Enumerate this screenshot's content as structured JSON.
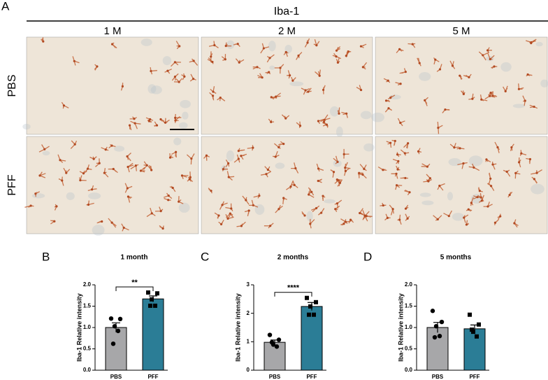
{
  "figure": {
    "panel": "A",
    "stain": "Iba-1",
    "columns": [
      "1 M",
      "2 M",
      "5 M"
    ],
    "rows": [
      "PBS",
      "PFF"
    ]
  },
  "chart_data": [
    {
      "type": "bar",
      "panel": "B",
      "title": "1 month",
      "y_label": "Iba-1 Relative intensity",
      "categories": [
        "PBS",
        "PFF"
      ],
      "values": [
        1.0,
        1.67
      ],
      "errors": [
        0.11,
        0.07
      ],
      "points": [
        [
          1.21,
          1.2,
          1.03,
          0.92,
          0.62
        ],
        [
          1.82,
          1.8,
          1.66,
          1.51,
          1.51
        ]
      ],
      "markers": [
        "circle",
        "square"
      ],
      "colors": [
        "#a7a7a9",
        "#2b7d96"
      ],
      "ylim": [
        0,
        2
      ],
      "yticks": [
        {
          "value": 0,
          "label": "0.0"
        },
        {
          "value": 0.5,
          "label": "0.5"
        },
        {
          "value": 1,
          "label": "1.0"
        },
        {
          "value": 1.5,
          "label": "1.5"
        },
        {
          "value": 2,
          "label": "2.0"
        }
      ],
      "significance": "**"
    },
    {
      "type": "bar",
      "panel": "C",
      "title": "2 months",
      "y_label": "Iba-1 Relative intensity",
      "categories": [
        "PBS",
        "PFF"
      ],
      "values": [
        0.98,
        2.24
      ],
      "errors": [
        0.08,
        0.14
      ],
      "points": [
        [
          1.24,
          1.07,
          0.9,
          0.83,
          0.98
        ],
        [
          2.54,
          2.39,
          2.24,
          1.95,
          1.95
        ]
      ],
      "markers": [
        "circle",
        "square"
      ],
      "colors": [
        "#a7a7a9",
        "#2b7d96"
      ],
      "ylim": [
        0,
        3
      ],
      "yticks": [
        0,
        1,
        2,
        3
      ],
      "significance": "****"
    },
    {
      "type": "bar",
      "panel": "D",
      "title": "5 months",
      "y_label": "Iba-1 Relative intensity",
      "categories": [
        "PBS",
        "PFF"
      ],
      "values": [
        1.0,
        0.97
      ],
      "errors": [
        0.12,
        0.09
      ],
      "points": [
        [
          1.39,
          1.13,
          1.03,
          0.8,
          0.77
        ],
        [
          1.3,
          1.07,
          0.9,
          0.79,
          0.95
        ]
      ],
      "markers": [
        "circle",
        "square"
      ],
      "colors": [
        "#a7a7a9",
        "#2b7d96"
      ],
      "ylim": [
        0,
        2
      ],
      "yticks": [
        {
          "value": 0,
          "label": "0.0"
        },
        {
          "value": 0.5,
          "label": "0.5"
        },
        {
          "value": 1,
          "label": "1.0"
        },
        {
          "value": 1.5,
          "label": "1.5"
        },
        {
          "value": 2,
          "label": "2.0"
        }
      ]
    }
  ]
}
